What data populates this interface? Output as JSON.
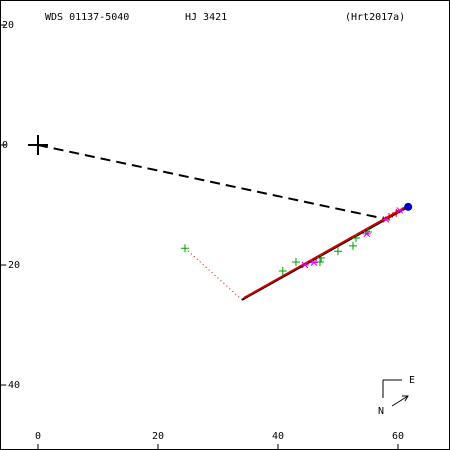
{
  "chart_data": {
    "type": "scatter",
    "title": "WDS 01137-5040",
    "subtitle": "HJ 3421",
    "reference": "(Hrt2017a)",
    "compass": {
      "east": "E",
      "north": "N"
    },
    "xlim": [
      -6.33,
      68.67
    ],
    "ylim": [
      -50.83,
      24.17
    ],
    "xticks": [
      0,
      20,
      40,
      60
    ],
    "yticks": [
      20,
      0,
      -20,
      -40
    ],
    "series": [
      {
        "marker": "dashed",
        "color": "#000000",
        "x": [
          0,
          57.8
        ],
        "y": [
          0,
          -12.3
        ]
      },
      {
        "marker": "solid",
        "color": "#000000",
        "x": [
          34,
          61.7
        ],
        "y": [
          -25.8,
          -10.3
        ]
      },
      {
        "marker": "solid",
        "color": "#cc0000",
        "x": [
          34.3,
          61.7
        ],
        "y": [
          -25.5,
          -10.1
        ]
      },
      {
        "marker": "dotted",
        "color": "#cc0000",
        "x": [
          24.5,
          34
        ],
        "y": [
          -17.2,
          -25.8
        ]
      },
      {
        "marker": "plus",
        "color": "#00a000",
        "x": [
          24.5,
          40.8,
          43,
          47,
          47.2,
          50,
          52.5,
          53,
          55
        ],
        "y": [
          -17.2,
          -21,
          -19.5,
          -19.5,
          -18.8,
          -17.7,
          -16.8,
          -15.5,
          -14.5
        ]
      },
      {
        "marker": "star",
        "color": "#e000e0",
        "x": [
          44.5,
          46,
          54.8,
          58,
          60.3
        ],
        "y": [
          -20,
          -19.6,
          -14.8,
          -12.4,
          -10.9
        ]
      },
      {
        "marker": "plus",
        "color": "#dd0000",
        "x": [
          58.5,
          59.7
        ],
        "y": [
          -12,
          -11.3
        ]
      },
      {
        "marker": "dot",
        "color": "#0000cc",
        "x": [
          61.7
        ],
        "y": [
          -10.3
        ]
      },
      {
        "marker": "cross",
        "color": "#000000",
        "x": [
          0
        ],
        "y": [
          0
        ]
      }
    ]
  }
}
